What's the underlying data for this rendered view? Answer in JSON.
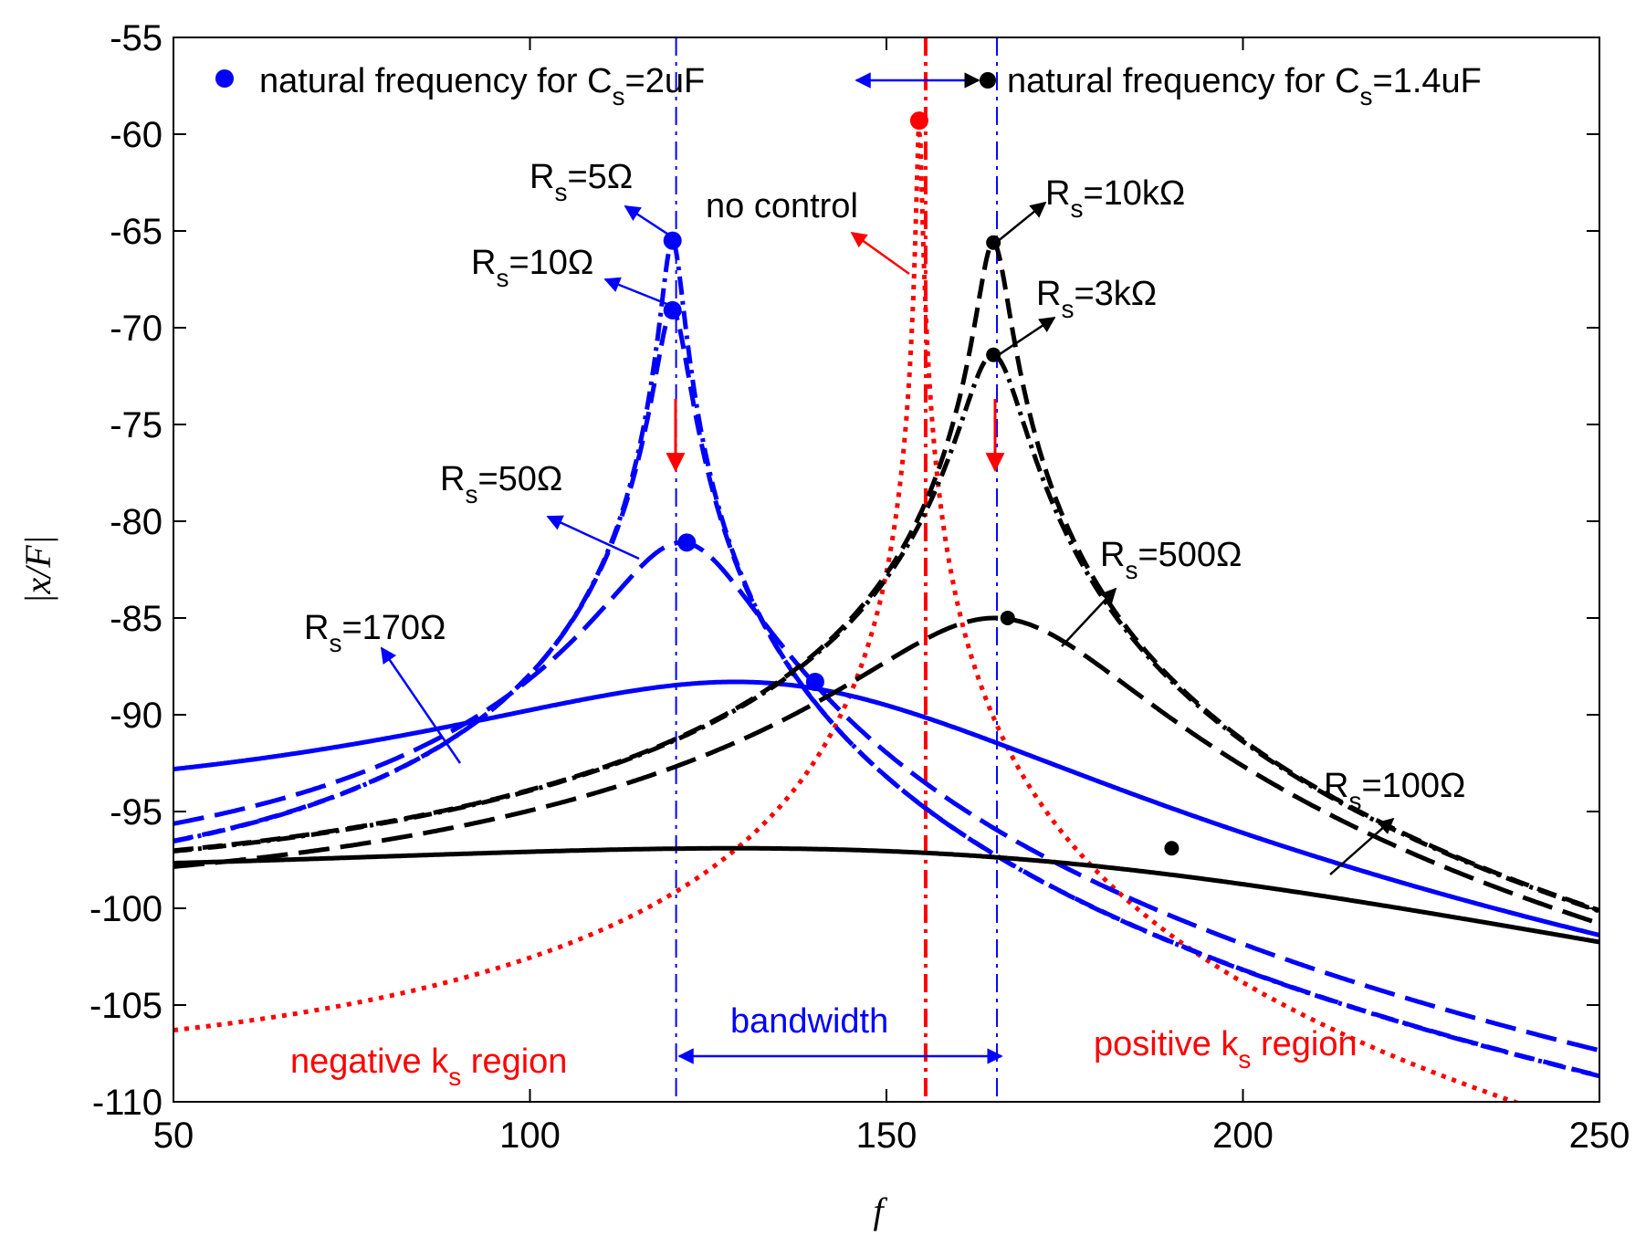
{
  "chart_data": {
    "type": "line",
    "xlabel": "f",
    "ylabel": "|x/F|",
    "xlim": [
      50,
      250
    ],
    "ylim": [
      -110,
      -55
    ],
    "xticks": [
      50,
      100,
      150,
      200,
      250
    ],
    "yticks": [
      -55,
      -60,
      -65,
      -70,
      -75,
      -80,
      -85,
      -90,
      -95,
      -100,
      -105,
      -110
    ],
    "grid": false,
    "colors": {
      "blue": "#0000ff",
      "black": "#000000",
      "red": "#ff0000"
    },
    "series": [
      {
        "name": "no control",
        "color": "#ff0000",
        "style": "dotted",
        "f0": 154.6,
        "peak": -59.3,
        "zeta": 0.002
      },
      {
        "name": "Cs=2uF, Rs=5Ω",
        "color": "#0000ff",
        "style": "dashdot",
        "f0": 120,
        "peak": -65.5,
        "zeta": 0.0116
      },
      {
        "name": "Cs=2uF, Rs=10Ω",
        "color": "#0000ff",
        "style": "dashed",
        "f0": 120,
        "peak": -69.1,
        "zeta": 0.0176
      },
      {
        "name": "Cs=2uF, Rs=50Ω",
        "color": "#0000ff",
        "style": "longdash",
        "f0": 122,
        "peak": -81.1,
        "zeta": 0.0786
      },
      {
        "name": "Cs=2uF, Rs=170Ω",
        "color": "#0000ff",
        "style": "solid",
        "f0": 140,
        "peak": -88.3,
        "zeta": 0.277
      },
      {
        "name": "Cs=1.4uF, Rs=10kΩ",
        "color": "#000000",
        "style": "dashed",
        "f0": 165,
        "peak": -65.6,
        "zeta": 0.0122
      },
      {
        "name": "Cs=1.4uF, Rs=3kΩ",
        "color": "#000000",
        "style": "dashdot",
        "f0": 165,
        "peak": -71.4,
        "zeta": 0.0237
      },
      {
        "name": "Cs=1.4uF, Rs=500Ω",
        "color": "#000000",
        "style": "longdash",
        "f0": 167,
        "peak": -85.0,
        "zeta": 0.1045
      },
      {
        "name": "Cs=1.4uF, Rs=100Ω",
        "color": "#000000",
        "style": "solid",
        "f0": 190,
        "peak": -96.9,
        "zeta": 0.52
      }
    ],
    "markers": [
      {
        "x": 154.6,
        "y": -59.3,
        "color": "#ff0000"
      },
      {
        "x": 120,
        "y": -65.5,
        "color": "#0000ff"
      },
      {
        "x": 120,
        "y": -69.1,
        "color": "#0000ff"
      },
      {
        "x": 122,
        "y": -81.1,
        "color": "#0000ff"
      },
      {
        "x": 140,
        "y": -88.3,
        "color": "#0000ff"
      },
      {
        "x": 165,
        "y": -65.6,
        "color": "#000000"
      },
      {
        "x": 165,
        "y": -71.4,
        "color": "#000000"
      },
      {
        "x": 167,
        "y": -85.0,
        "color": "#000000"
      },
      {
        "x": 190,
        "y": -96.9,
        "color": "#000000"
      }
    ],
    "vlines": [
      {
        "x": 120.5,
        "color": "#0000ff",
        "style": "dashdot"
      },
      {
        "x": 155.5,
        "color": "#ff0000",
        "style": "dashdot"
      },
      {
        "x": 165.5,
        "color": "#0000ff",
        "style": "dashdot"
      }
    ],
    "legend": {
      "blue_label": "natural frequency for C",
      "blue_sub": "s",
      "blue_value": "=2uF",
      "black_label": "natural frequency for C",
      "black_sub": "s",
      "black_value": "=1.4uF"
    },
    "annotations": {
      "no_control": "no control",
      "bandwidth": "bandwidth",
      "neg_region": {
        "pre": "negative k",
        "sub": "s",
        "post": " region"
      },
      "pos_region": {
        "pre": "positive k",
        "sub": "s",
        "post": " region"
      },
      "rs_labels": [
        {
          "id": "rs-5",
          "pre": "R",
          "sub": "s",
          "post": "=5Ω",
          "color": "#000000"
        },
        {
          "id": "rs-10",
          "pre": "R",
          "sub": "s",
          "post": "=10Ω",
          "color": "#000000"
        },
        {
          "id": "rs-50",
          "pre": "R",
          "sub": "s",
          "post": "=50Ω",
          "color": "#000000"
        },
        {
          "id": "rs-170",
          "pre": "R",
          "sub": "s",
          "post": "=170Ω",
          "color": "#000000"
        },
        {
          "id": "rs-10k",
          "pre": "R",
          "sub": "s",
          "post": "=10kΩ",
          "color": "#000000"
        },
        {
          "id": "rs-3k",
          "pre": "R",
          "sub": "s",
          "post": "=3kΩ",
          "color": "#000000"
        },
        {
          "id": "rs-500",
          "pre": "R",
          "sub": "s",
          "post": "=500Ω",
          "color": "#000000"
        },
        {
          "id": "rs-100",
          "pre": "R",
          "sub": "s",
          "post": "=100Ω",
          "color": "#000000"
        }
      ]
    }
  }
}
